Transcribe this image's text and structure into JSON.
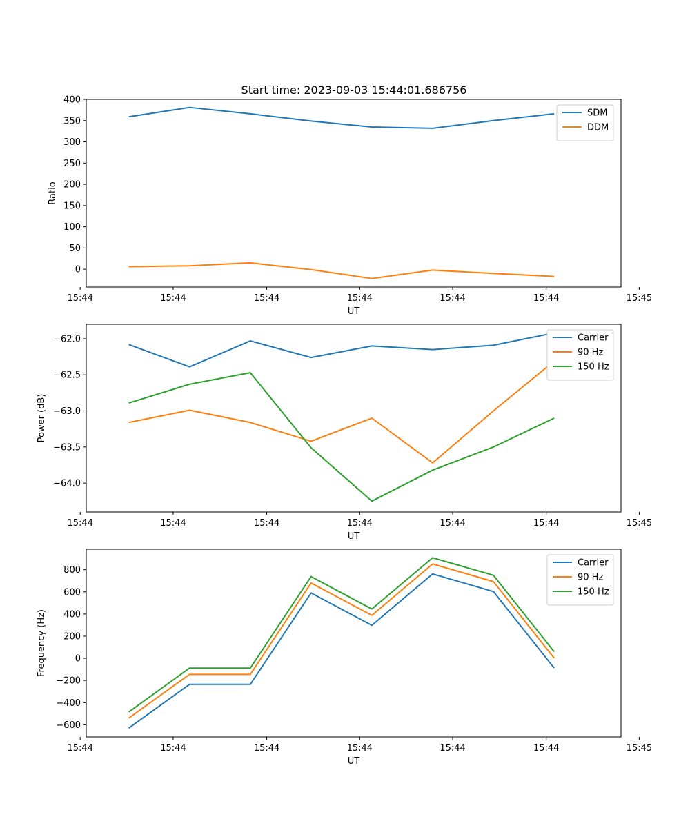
{
  "figure_title": "Start time: 2023-09-03 15:44:01.686756",
  "chart_data": [
    {
      "type": "line",
      "title": "Start time: 2023-09-03 15:44:01.686756",
      "xlabel": "UT",
      "ylabel": "Ratio",
      "x": [
        1,
        2,
        3,
        4,
        5,
        6,
        7,
        8
      ],
      "xlim": [
        0.3,
        9.1
      ],
      "xticks": [
        {
          "value": 0.2,
          "label": "15:44"
        },
        {
          "value": 1.73,
          "label": "15:44"
        },
        {
          "value": 3.27,
          "label": "15:44"
        },
        {
          "value": 4.8,
          "label": "15:44"
        },
        {
          "value": 6.33,
          "label": "15:44"
        },
        {
          "value": 7.87,
          "label": "15:44"
        },
        {
          "value": 9.4,
          "label": "15:45"
        }
      ],
      "ylim": [
        -42,
        400
      ],
      "yticks": [
        0,
        50,
        100,
        150,
        200,
        250,
        300,
        350,
        400
      ],
      "legend": "top-right",
      "series": [
        {
          "name": "SDM",
          "color": "#1f77b4",
          "values": [
            359,
            381,
            366,
            349,
            335,
            332,
            350,
            366
          ]
        },
        {
          "name": "DDM",
          "color": "#ff7f0e",
          "values": [
            6,
            8,
            15,
            -1,
            -22,
            -2,
            -10,
            -17
          ]
        }
      ]
    },
    {
      "type": "line",
      "xlabel": "UT",
      "ylabel": "Power (dB)",
      "x": [
        1,
        2,
        3,
        4,
        5,
        6,
        7,
        8
      ],
      "xlim": [
        0.3,
        9.1
      ],
      "xticks": [
        {
          "value": 0.2,
          "label": "15:44"
        },
        {
          "value": 1.73,
          "label": "15:44"
        },
        {
          "value": 3.27,
          "label": "15:44"
        },
        {
          "value": 4.8,
          "label": "15:44"
        },
        {
          "value": 6.33,
          "label": "15:44"
        },
        {
          "value": 7.87,
          "label": "15:44"
        },
        {
          "value": 9.4,
          "label": "15:45"
        }
      ],
      "ylim": [
        -64.4,
        -61.8
      ],
      "yticks": [
        {
          "value": -64.0,
          "label": "−64.0"
        },
        {
          "value": -63.5,
          "label": "−63.5"
        },
        {
          "value": -63.0,
          "label": "−63.0"
        },
        {
          "value": -62.5,
          "label": "−62.5"
        },
        {
          "value": -62.0,
          "label": "−62.0"
        }
      ],
      "legend": "top-right",
      "series": [
        {
          "name": "Carrier",
          "color": "#1f77b4",
          "values": [
            -62.08,
            -62.39,
            -62.03,
            -62.26,
            -62.1,
            -62.15,
            -62.09,
            -61.92
          ]
        },
        {
          "name": "90 Hz",
          "color": "#ff7f0e",
          "values": [
            -63.16,
            -62.99,
            -63.16,
            -63.42,
            -63.1,
            -63.72,
            -63.0,
            -62.31
          ]
        },
        {
          "name": "150 Hz",
          "color": "#2ca02c",
          "values": [
            -62.89,
            -62.63,
            -62.47,
            -63.51,
            -64.25,
            -63.82,
            -63.5,
            -63.1
          ]
        }
      ]
    },
    {
      "type": "line",
      "xlabel": "UT",
      "ylabel": "Frequency (Hz)",
      "x": [
        1,
        2,
        3,
        4,
        5,
        6,
        7,
        8
      ],
      "xlim": [
        0.3,
        9.1
      ],
      "xticks": [
        {
          "value": 0.2,
          "label": "15:44"
        },
        {
          "value": 1.73,
          "label": "15:44"
        },
        {
          "value": 3.27,
          "label": "15:44"
        },
        {
          "value": 4.8,
          "label": "15:44"
        },
        {
          "value": 6.33,
          "label": "15:44"
        },
        {
          "value": 7.87,
          "label": "15:44"
        },
        {
          "value": 9.4,
          "label": "15:45"
        }
      ],
      "ylim": [
        -710,
        985
      ],
      "yticks": [
        {
          "value": -600,
          "label": "−600"
        },
        {
          "value": -400,
          "label": "−400"
        },
        {
          "value": -200,
          "label": "−200"
        },
        {
          "value": 0,
          "label": "0"
        },
        {
          "value": 200,
          "label": "200"
        },
        {
          "value": 400,
          "label": "400"
        },
        {
          "value": 600,
          "label": "600"
        },
        {
          "value": 800,
          "label": "800"
        }
      ],
      "legend": "top-right",
      "series": [
        {
          "name": "Carrier",
          "color": "#1f77b4",
          "values": [
            -630,
            -235,
            -235,
            590,
            298,
            762,
            603,
            -88
          ]
        },
        {
          "name": "90 Hz",
          "color": "#ff7f0e",
          "values": [
            -540,
            -145,
            -145,
            680,
            388,
            852,
            693,
            2
          ]
        },
        {
          "name": "150 Hz",
          "color": "#2ca02c",
          "values": [
            -485,
            -88,
            -88,
            738,
            445,
            908,
            750,
            60
          ]
        }
      ]
    }
  ]
}
